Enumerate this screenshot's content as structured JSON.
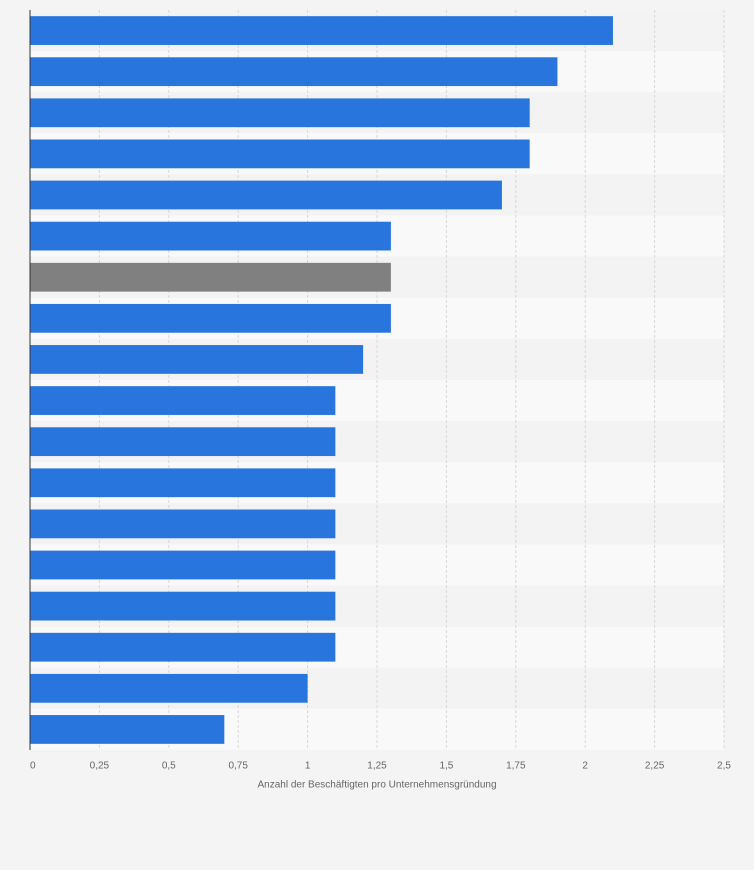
{
  "chart_data": {
    "type": "bar",
    "orientation": "horizontal",
    "x_label": "Anzahl der Beschäftigten pro Unternehmensgründung",
    "categories": [
      null,
      null,
      null,
      null,
      null,
      null,
      null,
      null,
      null,
      null,
      null,
      null,
      null,
      null,
      null,
      null,
      null,
      null
    ],
    "values": [
      2.1,
      1.9,
      1.8,
      1.8,
      1.7,
      1.3,
      1.3,
      1.3,
      1.2,
      1.1,
      1.1,
      1.1,
      1.1,
      1.1,
      1.1,
      1.1,
      1.0,
      0.7
    ],
    "colors": [
      "#2875de",
      "#2875de",
      "#2875de",
      "#2875de",
      "#2875de",
      "#2875de",
      "#808080",
      "#2875de",
      "#2875de",
      "#2875de",
      "#2875de",
      "#2875de",
      "#2875de",
      "#2875de",
      "#2875de",
      "#2875de",
      "#2875de",
      "#2875de"
    ],
    "xlim": [
      0,
      2.5
    ],
    "xticks": [
      0,
      {
        "value": 0.25,
        "label": "0,25"
      },
      {
        "value": 0.5,
        "label": "0,5"
      },
      {
        "value": 0.75,
        "label": "0,75"
      },
      1,
      {
        "value": 1.25,
        "label": "1,25"
      },
      {
        "value": 1.5,
        "label": "1,5"
      },
      {
        "value": 1.75,
        "label": "1,75"
      },
      2,
      {
        "value": 2.25,
        "label": "2,25"
      },
      {
        "value": 2.5,
        "label": "2,5"
      }
    ],
    "grid": true
  }
}
